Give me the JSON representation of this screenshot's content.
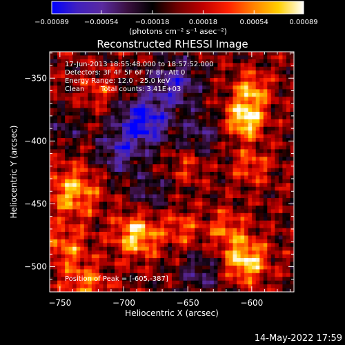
{
  "chart_data": {
    "type": "heatmap",
    "title": "Reconstructed RHESSI Image",
    "xlabel": "Heliocentric X (arcsec)",
    "ylabel": "Heliocentric Y (arcsec)",
    "xlim": [
      -758,
      -567
    ],
    "ylim": [
      -520,
      -329
    ],
    "x_ticks": [
      -750,
      -700,
      -650,
      -600
    ],
    "x_tick_labels": [
      "−750",
      "−700",
      "−650",
      "−600"
    ],
    "y_ticks": [
      -350,
      -400,
      -450,
      -500
    ],
    "y_tick_labels": [
      "−350",
      "−400",
      "−450",
      "−500"
    ],
    "colorbar": {
      "range": [
        -0.00089,
        0.00089
      ],
      "ticks": [
        -0.00089,
        -0.00054,
        -0.00018,
        0.00018,
        0.00054,
        0.00089
      ],
      "tick_labels": [
        "−0.00089",
        "−0.00054",
        "−0.00018",
        "0.00018",
        "0.00054",
        "0.00089"
      ],
      "units_label": "(photons cm⁻² s⁻¹ asec⁻²)",
      "colormap": [
        "#0000ff",
        "#4020c0",
        "#5a2aa0",
        "#3a1040",
        "#000000",
        "#700000",
        "#c00000",
        "#ff2000",
        "#ff8000",
        "#ffd000",
        "#ffffff"
      ]
    },
    "annotations": [
      "17-Jun-2013 18:55:48.000 to 18:57:52.000",
      "Detectors: 3F 4F 5F 6F 7F 8F, Att 0",
      "Energy Range: 12.0 - 25.0 keV",
      "Clean",
      "Total counts: 3.41E+03"
    ],
    "peak_label": "Position of Peak = [-605,-387]",
    "peak": [
      -605,
      -387
    ],
    "sources": [
      {
        "x": -605,
        "y": -383,
        "amp": 0.00089,
        "sigma": 10
      },
      {
        "x": -600,
        "y": -360,
        "amp": 0.0006,
        "sigma": 10
      },
      {
        "x": -605,
        "y": -495,
        "amp": 0.0008,
        "sigma": 12
      },
      {
        "x": -620,
        "y": -470,
        "amp": 0.00045,
        "sigma": 10
      },
      {
        "x": -690,
        "y": -475,
        "amp": 0.00075,
        "sigma": 12
      },
      {
        "x": -740,
        "y": -440,
        "amp": 0.00065,
        "sigma": 14
      },
      {
        "x": -745,
        "y": -485,
        "amp": 0.00045,
        "sigma": 12
      },
      {
        "x": -730,
        "y": -515,
        "amp": 0.0005,
        "sigma": 12
      },
      {
        "x": -650,
        "y": -420,
        "amp": 0.0003,
        "sigma": 9
      },
      {
        "x": -600,
        "y": -420,
        "amp": 0.0004,
        "sigma": 10
      },
      {
        "x": -720,
        "y": -360,
        "amp": 0.00035,
        "sigma": 9
      },
      {
        "x": -655,
        "y": -470,
        "amp": 0.0004,
        "sigma": 10
      },
      {
        "x": -685,
        "y": -385,
        "amp": -0.00089,
        "sigma": 14
      },
      {
        "x": -660,
        "y": -355,
        "amp": -0.0006,
        "sigma": 14
      },
      {
        "x": -705,
        "y": -410,
        "amp": -0.0005,
        "sigma": 12
      },
      {
        "x": -640,
        "y": -395,
        "amp": -0.0004,
        "sigma": 11
      },
      {
        "x": -745,
        "y": -390,
        "amp": -0.0003,
        "sigma": 9
      },
      {
        "x": -640,
        "y": -505,
        "amp": -0.0004,
        "sigma": 12
      },
      {
        "x": -680,
        "y": -440,
        "amp": -0.00035,
        "sigma": 11
      }
    ]
  },
  "footer": {
    "date_stamp": "14-May-2022 17:59"
  }
}
